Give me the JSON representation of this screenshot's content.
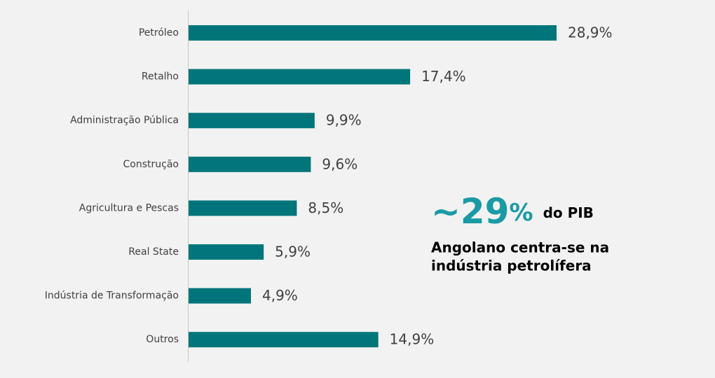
{
  "chart_data": {
    "type": "bar",
    "orientation": "horizontal",
    "categories": [
      "Petróleo",
      "Retalho",
      "Administração Pública",
      "Construção",
      "Agricultura e Pescas",
      "Real State",
      "Indústria de Transformação",
      "Outros"
    ],
    "values": [
      28.9,
      17.4,
      9.9,
      9.6,
      8.5,
      5.9,
      4.9,
      14.9
    ],
    "value_labels": [
      "28,9%",
      "17,4%",
      "9,9%",
      "9,6%",
      "8,5%",
      "5,9%",
      "4,9%",
      "14,9%"
    ],
    "color": "#00767a",
    "annotation": {
      "number": "~29",
      "unit": "%",
      "suffix": "do PIB",
      "lines": [
        "Angolano centra-se na",
        "indústria petrolífera"
      ]
    }
  }
}
